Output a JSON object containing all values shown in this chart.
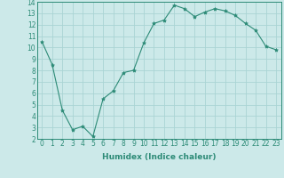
{
  "x": [
    0,
    1,
    2,
    3,
    4,
    5,
    6,
    7,
    8,
    9,
    10,
    11,
    12,
    13,
    14,
    15,
    16,
    17,
    18,
    19,
    20,
    21,
    22,
    23
  ],
  "y": [
    10.5,
    8.5,
    4.5,
    2.8,
    3.1,
    2.2,
    5.5,
    6.2,
    7.8,
    8.0,
    10.4,
    12.1,
    12.4,
    13.7,
    13.4,
    12.7,
    13.1,
    13.4,
    13.2,
    12.8,
    12.1,
    11.5,
    10.1,
    9.8
  ],
  "line_color": "#2d8b77",
  "marker": "*",
  "marker_size": 3,
  "bg_color": "#cce9e9",
  "grid_color": "#aad4d4",
  "xlabel": "Humidex (Indice chaleur)",
  "xlim": [
    -0.5,
    23.5
  ],
  "ylim": [
    2,
    14
  ],
  "yticks": [
    2,
    3,
    4,
    5,
    6,
    7,
    8,
    9,
    10,
    11,
    12,
    13,
    14
  ],
  "xticks": [
    0,
    1,
    2,
    3,
    4,
    5,
    6,
    7,
    8,
    9,
    10,
    11,
    12,
    13,
    14,
    15,
    16,
    17,
    18,
    19,
    20,
    21,
    22,
    23
  ],
  "tick_fontsize": 5.5,
  "label_fontsize": 6.5,
  "tick_color": "#2d8b77",
  "axis_color": "#2d8b77"
}
